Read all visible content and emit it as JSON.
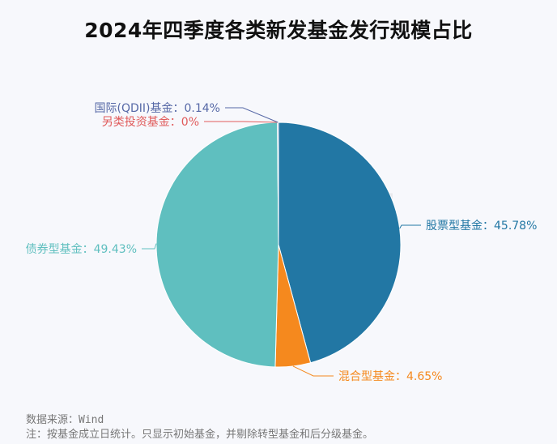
{
  "chart_data": {
    "type": "pie",
    "title": "2024年四季度各类新发基金发行规模占比",
    "slices": [
      {
        "name": "股票型基金",
        "value": 45.78,
        "label": "股票型基金：45.78%",
        "color": "#2277a4"
      },
      {
        "name": "混合型基金",
        "value": 4.65,
        "label": "混合型基金：4.65%",
        "color": "#f5891e"
      },
      {
        "name": "债券型基金",
        "value": 49.43,
        "label": "债券型基金：49.43%",
        "color": "#5fbfbf"
      },
      {
        "name": "另类投资基金",
        "value": 0,
        "label": "另类投资基金：0%",
        "color": "#e05b5b"
      },
      {
        "name": "国际(QDII)基金",
        "value": 0.14,
        "label": "国际(QDII)基金：0.14%",
        "color": "#5668a6"
      }
    ],
    "watermark": "Wind",
    "source": "数据来源：Wind",
    "note": "注：按基金成立日统计。只显示初始基金，并剔除转型基金和后分级基金。"
  }
}
